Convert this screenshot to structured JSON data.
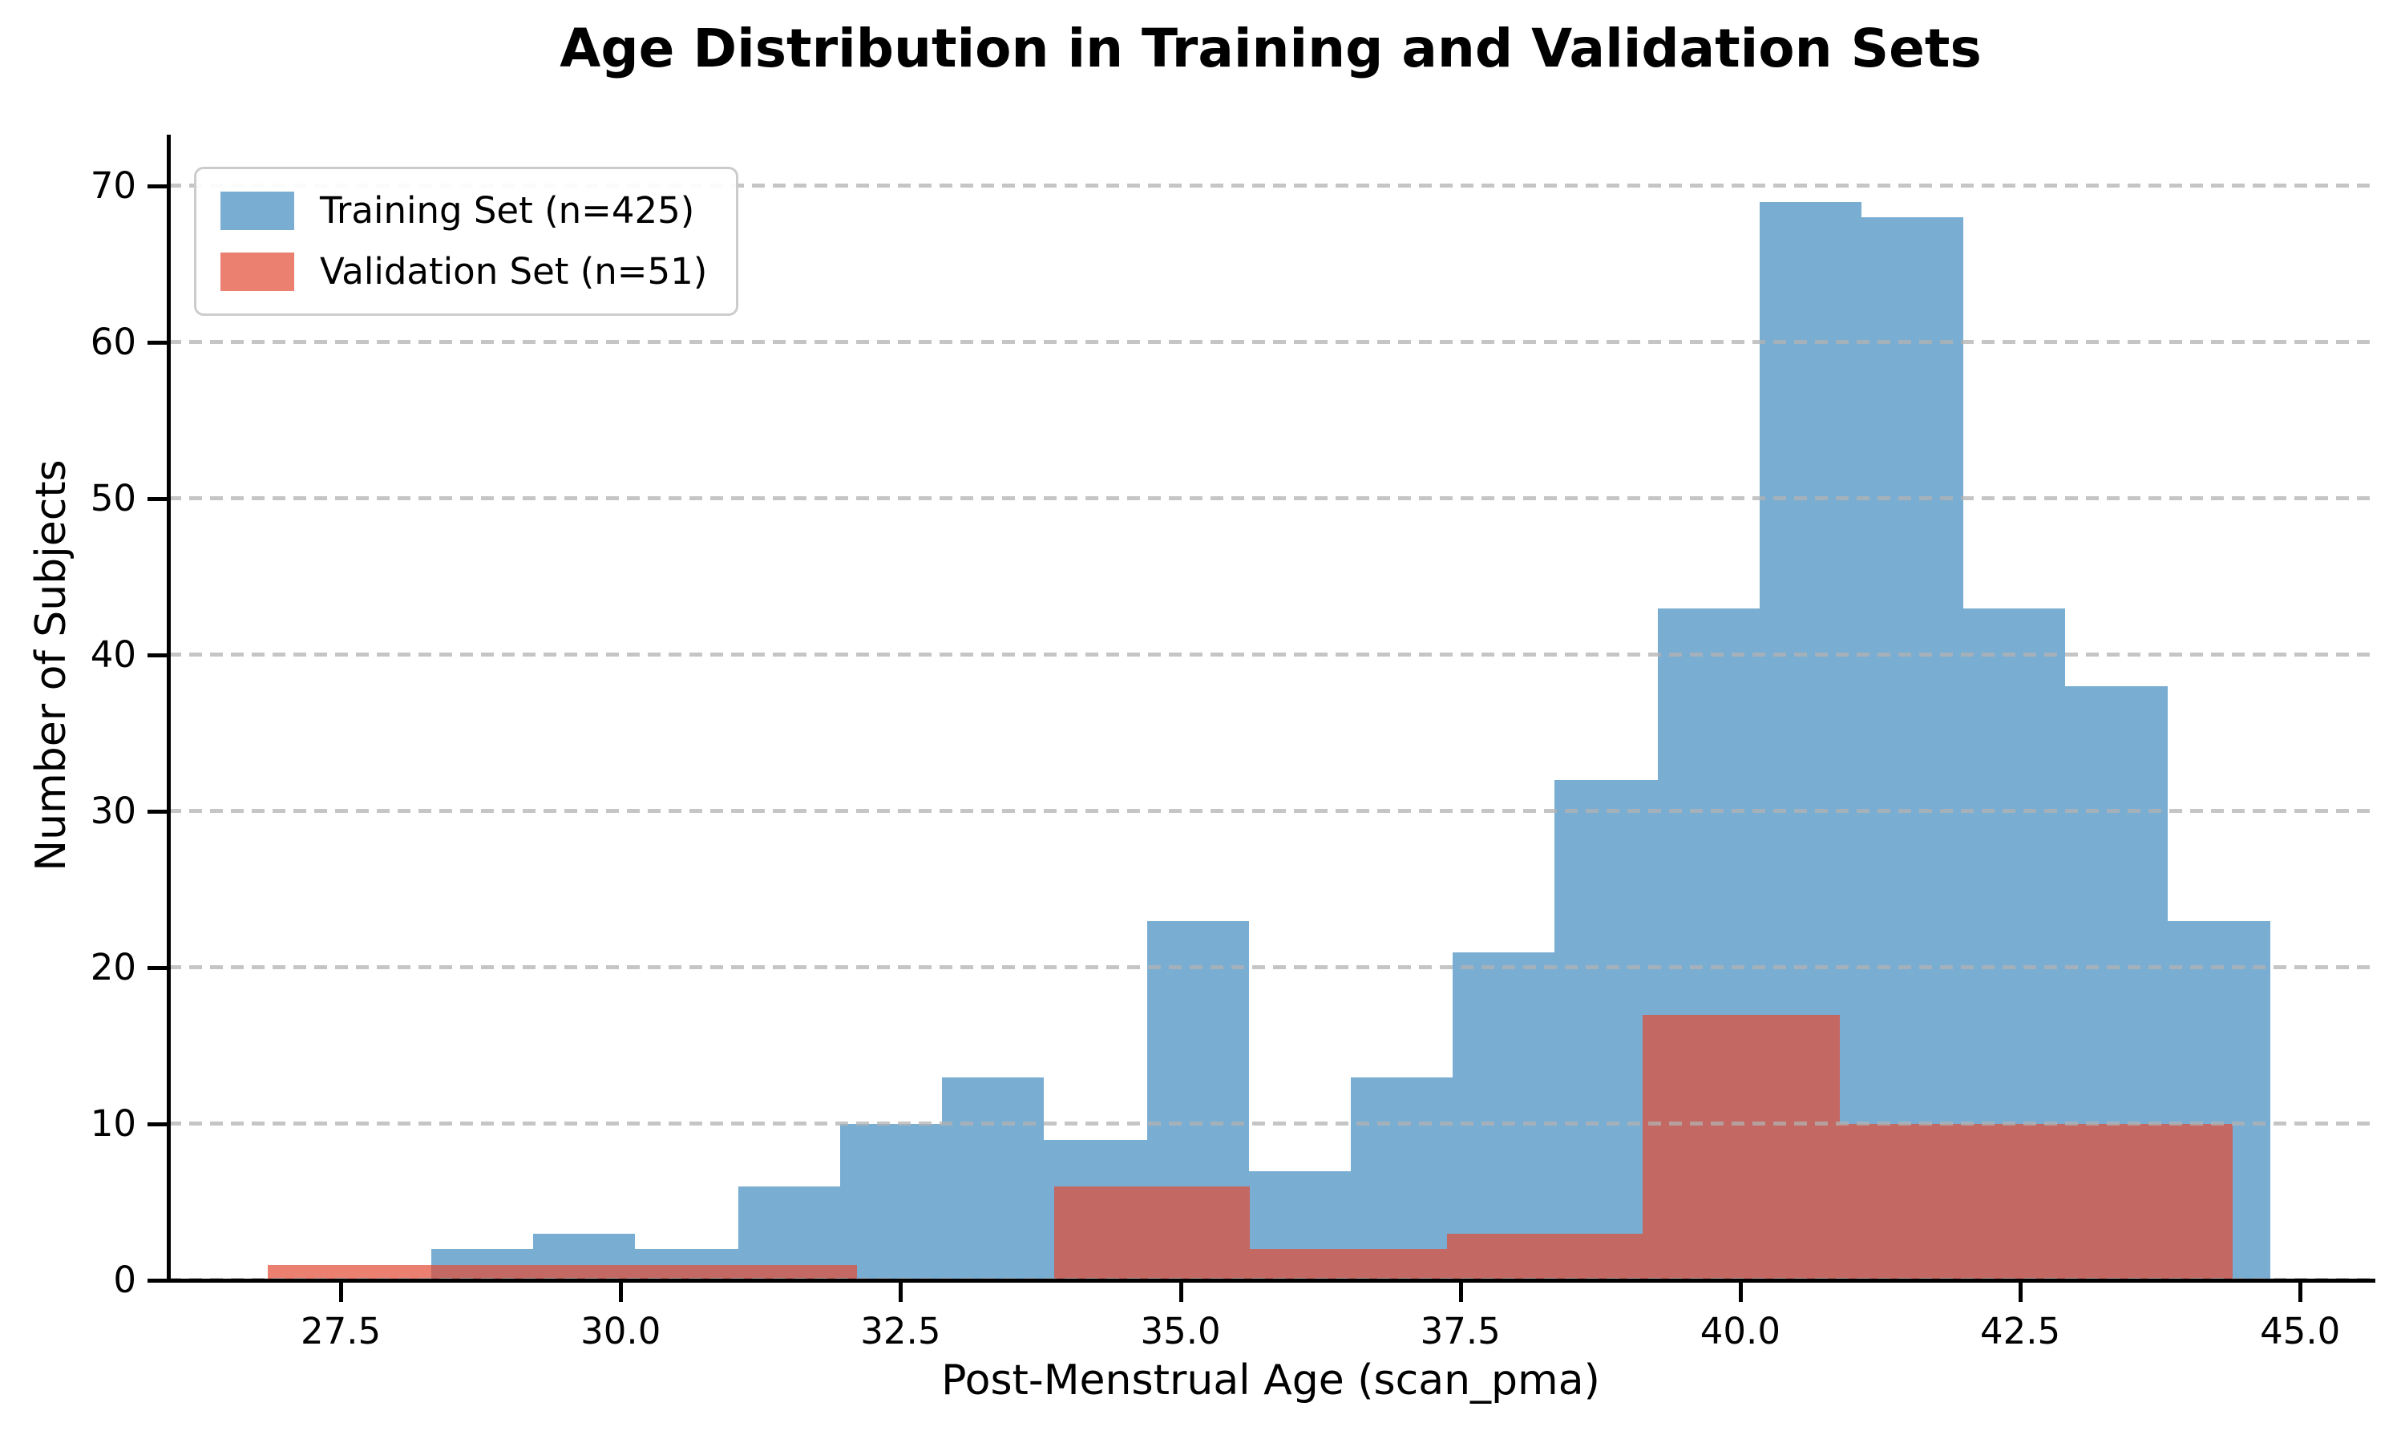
{
  "title": "Age Distribution in Training and Validation Sets",
  "xlabel": "Post-Menstrual Age (scan_pma)",
  "ylabel": "Number of Subjects",
  "legend": {
    "items": [
      {
        "label": "Training Set (n=425)",
        "series": "training"
      },
      {
        "label": "Validation Set (n=51)",
        "series": "validation"
      }
    ]
  },
  "colors": {
    "training_fill": "rgba(31,119,180,0.6)",
    "validation_fill": "rgba(226,74,51,0.7)",
    "gridline": "rgba(178,178,178,0.75)",
    "axis": "#000000"
  },
  "chart_data": {
    "type": "bar",
    "subtype": "overlaid-histogram",
    "title": "Age Distribution in Training and Validation Sets",
    "xlabel": "Post-Menstrual Age (scan_pma)",
    "ylabel": "Number of Subjects",
    "grid": true,
    "grid_style": "dashed",
    "legend_position": "upper left",
    "x_domain": [
      25.96,
      45.65
    ],
    "y_domain": [
      0,
      73.3
    ],
    "x_ticks": [
      {
        "value": 27.5,
        "label": "27.5"
      },
      {
        "value": 30.0,
        "label": "30.0"
      },
      {
        "value": 32.5,
        "label": "32.5"
      },
      {
        "value": 35.0,
        "label": "35.0"
      },
      {
        "value": 37.5,
        "label": "37.5"
      },
      {
        "value": 40.0,
        "label": "40.0"
      },
      {
        "value": 42.5,
        "label": "42.5"
      },
      {
        "value": 45.0,
        "label": "45.0"
      }
    ],
    "y_ticks": [
      {
        "value": 0,
        "label": "0"
      },
      {
        "value": 10,
        "label": "10"
      },
      {
        "value": 20,
        "label": "20"
      },
      {
        "value": 30,
        "label": "30"
      },
      {
        "value": 40,
        "label": "40"
      },
      {
        "value": 50,
        "label": "50"
      },
      {
        "value": 60,
        "label": "60"
      },
      {
        "value": 70,
        "label": "70"
      }
    ],
    "series": [
      {
        "name": "Training Set (n=425)",
        "n": 425,
        "color_key": "training_fill",
        "bin_edges": [
          28.31,
          29.22,
          30.13,
          31.05,
          31.96,
          32.87,
          33.78,
          34.7,
          35.61,
          36.52,
          37.43,
          38.34,
          39.26,
          40.17,
          41.08,
          41.99,
          42.9,
          43.82,
          44.73
        ],
        "counts": [
          2,
          3,
          2,
          6,
          10,
          13,
          9,
          23,
          7,
          13,
          21,
          32,
          43,
          69,
          68,
          43,
          38,
          23
        ]
      },
      {
        "name": "Validation Set (n=51)",
        "n": 51,
        "color_key": "validation_fill",
        "bin_edges": [
          26.85,
          28.6,
          30.36,
          32.11,
          33.87,
          35.62,
          37.38,
          39.13,
          40.89,
          42.64,
          44.4
        ],
        "counts": [
          1,
          1,
          1,
          0,
          6,
          2,
          3,
          17,
          10,
          10
        ]
      }
    ]
  }
}
